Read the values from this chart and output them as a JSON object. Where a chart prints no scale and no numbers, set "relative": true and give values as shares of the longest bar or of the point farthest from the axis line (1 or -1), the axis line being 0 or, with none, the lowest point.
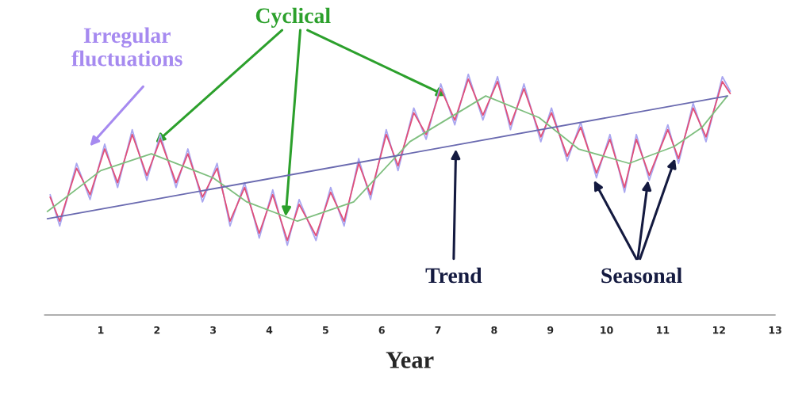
{
  "chart_data": {
    "type": "line",
    "relative": true,
    "xlabel": "Year",
    "xlim": [
      0,
      13
    ],
    "xticks": [
      1,
      2,
      3,
      4,
      5,
      6,
      7,
      8,
      9,
      10,
      11,
      12,
      13
    ],
    "tick_labels": "x",
    "grid": false,
    "legend": false,
    "marker": "none",
    "line_style": "solid",
    "series": [
      {
        "color": "#a9a6f0",
        "x": [
          0.1,
          0.27,
          0.57,
          0.81,
          1.07,
          1.3,
          1.56,
          1.82,
          2.06,
          2.34,
          2.55,
          2.81,
          3.07,
          3.3,
          3.56,
          3.82,
          4.06,
          4.32,
          4.53,
          4.83,
          5.09,
          5.33,
          5.59,
          5.8,
          6.08,
          6.29,
          6.57,
          6.79,
          7.05,
          7.3,
          7.54,
          7.8,
          8.06,
          8.29,
          8.53,
          8.83,
          9.02,
          9.3,
          9.54,
          9.82,
          10.06,
          10.32,
          10.53,
          10.76,
          11.09,
          11.28,
          11.54,
          11.77,
          12.06,
          12.2
        ],
        "values": [
          0.5,
          0.37,
          0.63,
          0.48,
          0.71,
          0.53,
          0.77,
          0.56,
          0.75,
          0.53,
          0.69,
          0.47,
          0.63,
          0.37,
          0.55,
          0.32,
          0.52,
          0.29,
          0.48,
          0.31,
          0.53,
          0.37,
          0.65,
          0.48,
          0.77,
          0.6,
          0.86,
          0.73,
          0.96,
          0.79,
          1.0,
          0.81,
          0.99,
          0.77,
          0.96,
          0.72,
          0.86,
          0.64,
          0.8,
          0.57,
          0.75,
          0.51,
          0.75,
          0.56,
          0.79,
          0.63,
          0.88,
          0.72,
          0.99,
          0.93
        ]
      },
      {
        "color": "#e0507a",
        "x": [
          0.1,
          0.27,
          0.57,
          0.81,
          1.07,
          1.3,
          1.56,
          1.82,
          2.06,
          2.34,
          2.55,
          2.81,
          3.07,
          3.3,
          3.56,
          3.82,
          4.06,
          4.32,
          4.53,
          4.83,
          5.09,
          5.33,
          5.59,
          5.8,
          6.08,
          6.29,
          6.57,
          6.79,
          7.05,
          7.3,
          7.54,
          7.8,
          8.06,
          8.29,
          8.53,
          8.83,
          9.02,
          9.3,
          9.54,
          9.82,
          10.06,
          10.32,
          10.53,
          10.76,
          11.09,
          11.28,
          11.54,
          11.77,
          12.06,
          12.2
        ],
        "values": [
          0.49,
          0.39,
          0.61,
          0.5,
          0.69,
          0.55,
          0.75,
          0.58,
          0.73,
          0.55,
          0.67,
          0.49,
          0.61,
          0.39,
          0.53,
          0.34,
          0.5,
          0.31,
          0.46,
          0.33,
          0.51,
          0.39,
          0.63,
          0.5,
          0.75,
          0.62,
          0.84,
          0.75,
          0.94,
          0.81,
          0.98,
          0.83,
          0.97,
          0.79,
          0.94,
          0.74,
          0.84,
          0.66,
          0.78,
          0.59,
          0.73,
          0.53,
          0.73,
          0.58,
          0.77,
          0.65,
          0.86,
          0.74,
          0.97,
          0.92
        ]
      },
      {
        "color": "#7fbf7f",
        "x": [
          0.05,
          1.0,
          1.9,
          3.0,
          3.6,
          4.5,
          5.5,
          6.5,
          7.85,
          8.8,
          9.5,
          10.4,
          11.2,
          11.7,
          12.15
        ],
        "values": [
          0.43,
          0.6,
          0.67,
          0.57,
          0.47,
          0.39,
          0.47,
          0.72,
          0.91,
          0.82,
          0.69,
          0.63,
          0.7,
          0.78,
          0.91
        ]
      },
      {
        "color": "#6a6ab0",
        "x": [
          0.05,
          12.15
        ],
        "values": [
          0.4,
          0.91
        ]
      }
    ],
    "annotations": [
      "Irregular\nfluctuations",
      "Cyclical",
      "Trend",
      "Seasonal"
    ]
  }
}
